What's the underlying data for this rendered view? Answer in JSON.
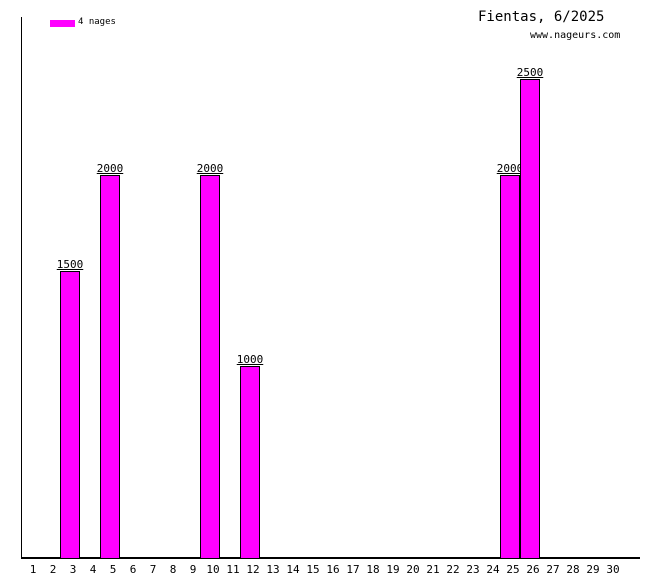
{
  "header": {
    "title": "Fientas, 6/2025",
    "website": "www.nageurs.com"
  },
  "legend": {
    "label": "4 nages",
    "swatch_color": "#ff00ff"
  },
  "chart_data": {
    "type": "bar",
    "title": "Fientas, 6/2025",
    "categories": [
      1,
      2,
      3,
      4,
      5,
      6,
      7,
      8,
      9,
      10,
      11,
      12,
      13,
      14,
      15,
      16,
      17,
      18,
      19,
      20,
      21,
      22,
      23,
      24,
      25,
      26,
      27,
      28,
      29,
      30
    ],
    "values": [
      0,
      0,
      1500,
      0,
      2000,
      0,
      0,
      0,
      0,
      2000,
      0,
      1000,
      0,
      0,
      0,
      0,
      0,
      0,
      0,
      0,
      0,
      0,
      0,
      0,
      2000,
      2500,
      0,
      0,
      0,
      0
    ],
    "xlabel": "",
    "ylabel": "",
    "ylim": [
      0,
      2800
    ],
    "grid": false,
    "bar_color": "#ff00ff",
    "bar_border_color": "#000000",
    "value_labels_shown": true,
    "legend": "4 nages",
    "legend_position": "top-left"
  }
}
